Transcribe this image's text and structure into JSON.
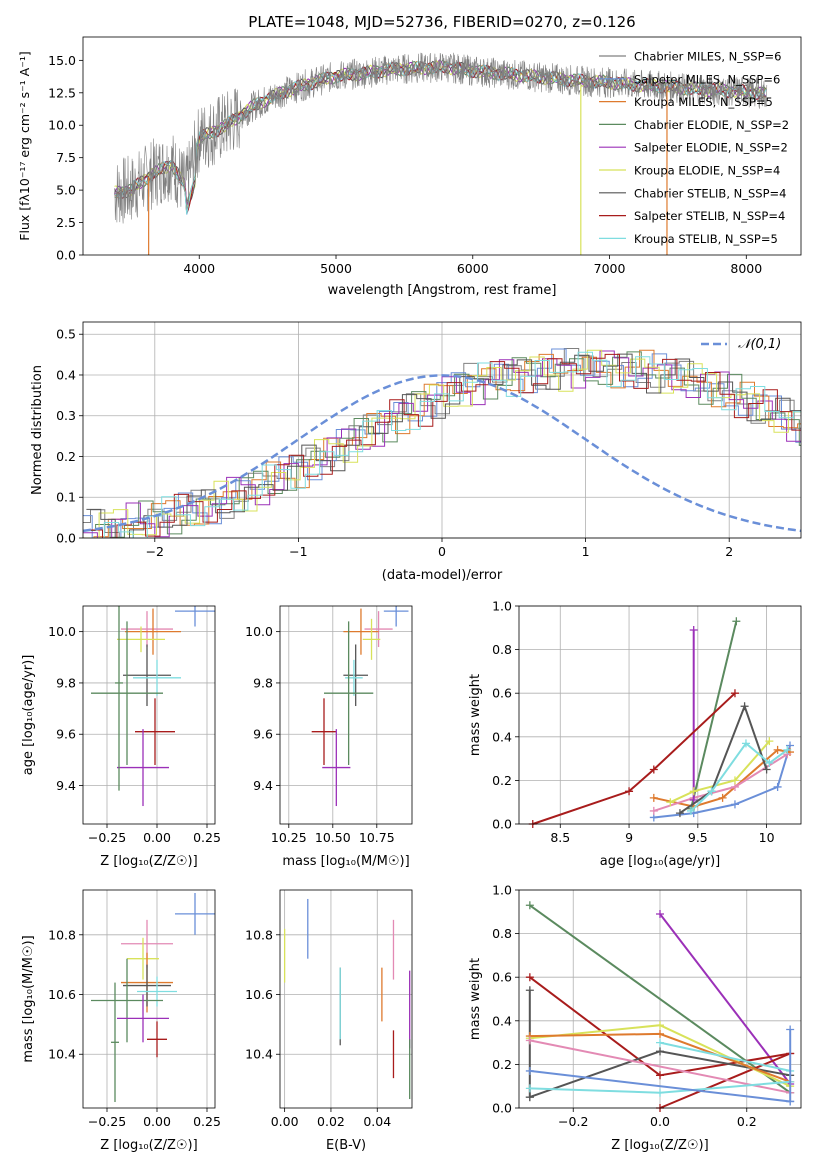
{
  "colors": {
    "blue": "#6a8fd8",
    "orange": "#de7a2e",
    "green": "#5b8a5f",
    "pink": "#e38ab4",
    "purple": "#9b30b8",
    "yellow": "#d8e25a",
    "dark": "#555555",
    "red": "#a81c1c",
    "cyan": "#7fdde0",
    "grey": "#808080"
  },
  "chart_data": [
    {
      "id": "spectrum",
      "type": "line",
      "title": "PLATE=1048, MJD=52736, FIBERID=0270, z=0.126",
      "xlabel": "wavelength [Angstrom, rest frame]",
      "ylabel": "Flux [fλ10⁻¹⁷ erg cm⁻² s⁻¹ A⁻¹]",
      "xlim": [
        3150,
        8400
      ],
      "ylim": [
        0,
        16.8
      ],
      "xticks": [
        4000,
        5000,
        6000,
        7000,
        8000
      ],
      "yticks": [
        0.0,
        2.5,
        5.0,
        7.5,
        10.0,
        12.5,
        15.0
      ],
      "legend_position": "top-right",
      "legend": [
        {
          "name": "Chabrier MILES, N_SSP=6",
          "color_key": "grey"
        },
        {
          "name": "Salpeter MILES, N_SSP=6",
          "color_key": "blue"
        },
        {
          "name": "Kroupa MILES, N_SSP=5",
          "color_key": "orange"
        },
        {
          "name": "Chabrier ELODIE, N_SSP=2",
          "color_key": "green"
        },
        {
          "name": "Salpeter ELODIE, N_SSP=2",
          "color_key": "purple"
        },
        {
          "name": "Kroupa ELODIE, N_SSP=4",
          "color_key": "yellow"
        },
        {
          "name": "Chabrier STELIB, N_SSP=4",
          "color_key": "dark"
        },
        {
          "name": "Salpeter STELIB, N_SSP=4",
          "color_key": "red"
        },
        {
          "name": "Kroupa STELIB, N_SSP=5",
          "color_key": "cyan"
        }
      ],
      "continuum": {
        "x": [
          3380,
          3500,
          3650,
          3800,
          3900,
          4000,
          4200,
          4400,
          4600,
          4800,
          5000,
          5200,
          5400,
          5600,
          5800,
          6000,
          6200,
          6400,
          6600,
          6800,
          7000,
          7200,
          7400,
          7600,
          7800,
          8000,
          8150
        ],
        "y": [
          4.8,
          5.0,
          6.2,
          7.0,
          5.2,
          9.0,
          10.0,
          11.5,
          12.5,
          13.2,
          13.8,
          14.0,
          14.3,
          14.4,
          14.5,
          14.2,
          14.0,
          13.8,
          13.6,
          13.4,
          13.3,
          13.1,
          13.0,
          12.8,
          12.7,
          12.6,
          12.4
        ]
      },
      "vertical_artifacts": [
        {
          "x": 6790,
          "y": [
            0,
            13.0
          ],
          "color_key": "yellow"
        },
        {
          "x": 7420,
          "y": [
            0,
            13.0
          ],
          "color_key": "orange"
        },
        {
          "x": 3630,
          "y": [
            0,
            6.0
          ],
          "color_key": "orange"
        }
      ]
    },
    {
      "id": "residuals",
      "type": "line",
      "title": "",
      "xlabel": "(data-model)/error",
      "ylabel": "Normed distribution",
      "xlim": [
        -2.5,
        2.5
      ],
      "ylim": [
        0,
        0.53
      ],
      "xticks": [
        -2,
        -1,
        0,
        1,
        2
      ],
      "yticks": [
        0.0,
        0.1,
        0.2,
        0.3,
        0.4,
        0.5
      ],
      "grid": true,
      "legend_position": "top-right",
      "reference_curve": {
        "name": "𝒩(0,1)",
        "style": "dashed",
        "color_key": "blue"
      },
      "histogram_bins": {
        "start": -2.5,
        "width": 0.1
      },
      "histogram_mean": [
        0.018,
        0.022,
        0.027,
        0.033,
        0.04,
        0.047,
        0.055,
        0.065,
        0.075,
        0.087,
        0.1,
        0.113,
        0.128,
        0.143,
        0.16,
        0.177,
        0.195,
        0.214,
        0.233,
        0.252,
        0.27,
        0.29,
        0.308,
        0.325,
        0.342,
        0.357,
        0.37,
        0.382,
        0.392,
        0.4,
        0.405,
        0.408,
        0.412,
        0.415,
        0.418,
        0.42,
        0.42,
        0.418,
        0.415,
        0.41,
        0.404,
        0.396,
        0.387,
        0.376,
        0.363,
        0.349,
        0.334,
        0.318,
        0.301,
        0.283,
        0.265,
        0.247,
        0.228,
        0.21,
        0.192,
        0.175,
        0.158,
        0.142,
        0.127,
        0.113,
        0.1,
        0.088,
        0.077,
        0.067,
        0.058,
        0.05,
        0.043,
        0.036,
        0.03,
        0.025
      ],
      "series_color_keys": [
        "grey",
        "blue",
        "orange",
        "green",
        "purple",
        "yellow",
        "dark",
        "red",
        "cyan"
      ]
    },
    {
      "id": "age-vs-Z",
      "type": "scatter",
      "xlabel": "Z [log₁₀(Z/Z☉)]",
      "ylabel": "age  [log₁₀(age/yr)]",
      "xlim": [
        -0.37,
        0.29
      ],
      "ylim": [
        9.25,
        10.1
      ],
      "xticks": [
        -0.25,
        0.0,
        0.25
      ],
      "xtick_labels": [
        "−0.25",
        "0.00",
        "0.25"
      ],
      "yticks": [
        9.4,
        9.6,
        9.8,
        10.0
      ],
      "grid": true,
      "errorbars": [
        {
          "color_key": "blue",
          "x": 0.19,
          "xerr": 0.1,
          "y": 10.08,
          "yerr": 0.06
        },
        {
          "color_key": "pink",
          "x": -0.05,
          "xerr": 0.13,
          "y": 10.01,
          "yerr": 0.07
        },
        {
          "color_key": "orange",
          "x": -0.02,
          "xerr": 0.14,
          "y": 10.0,
          "yerr": 0.09
        },
        {
          "color_key": "yellow",
          "x": -0.08,
          "xerr": 0.12,
          "y": 9.97,
          "yerr": 0.05
        },
        {
          "color_key": "dark",
          "x": -0.05,
          "xerr": 0.12,
          "y": 9.83,
          "yerr": 0.12
        },
        {
          "color_key": "cyan",
          "x": 0.0,
          "xerr": 0.12,
          "y": 9.82,
          "yerr": 0.07
        },
        {
          "color_key": "green",
          "x": -0.15,
          "xerr": 0.18,
          "y": 9.76,
          "yerr": 0.28
        },
        {
          "color_key": "red",
          "x": -0.01,
          "xerr": 0.1,
          "y": 9.61,
          "yerr": 0.13
        },
        {
          "color_key": "purple",
          "x": -0.07,
          "xerr": 0.13,
          "y": 9.47,
          "yerr": 0.15
        },
        {
          "color_key": "green",
          "x": -0.19,
          "xerr": 0.02,
          "y": 9.8,
          "yerr": 0.42
        }
      ]
    },
    {
      "id": "age-vs-mass",
      "type": "scatter",
      "xlabel": "mass [log₁₀(M/M☉)]",
      "ylabel": "",
      "xlim": [
        10.2,
        10.95
      ],
      "ylim": [
        9.25,
        10.1
      ],
      "xticks": [
        10.25,
        10.5,
        10.75
      ],
      "xtick_labels": [
        "10.25",
        "10.50",
        "10.75"
      ],
      "yticks": [
        9.4,
        9.6,
        9.8,
        10.0
      ],
      "grid": true,
      "errorbars": [
        {
          "color_key": "blue",
          "x": 10.86,
          "xerr": 0.07,
          "y": 10.08,
          "yerr": 0.06
        },
        {
          "color_key": "pink",
          "x": 10.76,
          "xerr": 0.08,
          "y": 10.01,
          "yerr": 0.07
        },
        {
          "color_key": "orange",
          "x": 10.66,
          "xerr": 0.1,
          "y": 10.0,
          "yerr": 0.09
        },
        {
          "color_key": "yellow",
          "x": 10.72,
          "xerr": 0.05,
          "y": 9.97,
          "yerr": 0.08
        },
        {
          "color_key": "dark",
          "x": 10.63,
          "xerr": 0.07,
          "y": 9.83,
          "yerr": 0.12
        },
        {
          "color_key": "cyan",
          "x": 10.62,
          "xerr": 0.05,
          "y": 9.82,
          "yerr": 0.07
        },
        {
          "color_key": "green",
          "x": 10.59,
          "xerr": 0.14,
          "y": 9.76,
          "yerr": 0.28
        },
        {
          "color_key": "red",
          "x": 10.45,
          "xerr": 0.07,
          "y": 9.61,
          "yerr": 0.13
        },
        {
          "color_key": "purple",
          "x": 10.52,
          "xerr": 0.08,
          "y": 9.47,
          "yerr": 0.15
        }
      ]
    },
    {
      "id": "weight-vs-age",
      "type": "line",
      "xlabel": "age  [log₁₀(age/yr)]",
      "ylabel": "mass weight",
      "xlim": [
        8.2,
        10.25
      ],
      "ylim": [
        0,
        1.0
      ],
      "xticks": [
        8.5,
        9.0,
        9.5,
        10.0
      ],
      "yticks": [
        0.0,
        0.2,
        0.4,
        0.6,
        0.8,
        1.0
      ],
      "grid": true,
      "series": [
        {
          "color_key": "blue",
          "x": [
            9.18,
            9.47,
            9.77,
            10.08,
            10.17
          ],
          "y": [
            0.03,
            0.05,
            0.09,
            0.17,
            0.36
          ]
        },
        {
          "color_key": "orange",
          "x": [
            9.18,
            9.47,
            9.68,
            10.08,
            10.17
          ],
          "y": [
            0.12,
            0.08,
            0.12,
            0.34,
            0.33
          ]
        },
        {
          "color_key": "green",
          "x": [
            9.45,
            9.78
          ],
          "y": [
            0.07,
            0.93
          ]
        },
        {
          "color_key": "pink",
          "x": [
            9.18,
            9.47,
            9.77,
            10.15
          ],
          "y": [
            0.06,
            0.12,
            0.17,
            0.32
          ]
        },
        {
          "color_key": "purple",
          "x": [
            9.47,
            9.47
          ],
          "y": [
            0.11,
            0.89
          ]
        },
        {
          "color_key": "yellow",
          "x": [
            9.3,
            9.47,
            9.77,
            10.02
          ],
          "y": [
            0.1,
            0.15,
            0.2,
            0.38
          ]
        },
        {
          "color_key": "dark",
          "x": [
            9.37,
            9.6,
            9.84,
            10.0
          ],
          "y": [
            0.05,
            0.15,
            0.54,
            0.25
          ]
        },
        {
          "color_key": "red",
          "x": [
            8.3,
            9.0,
            9.18,
            9.77
          ],
          "y": [
            0.0,
            0.15,
            0.25,
            0.6
          ]
        },
        {
          "color_key": "cyan",
          "x": [
            9.45,
            9.6,
            9.85,
            10.02,
            10.15
          ],
          "y": [
            0.06,
            0.15,
            0.37,
            0.28,
            0.34
          ]
        }
      ]
    },
    {
      "id": "mass-vs-Z",
      "type": "scatter",
      "xlabel": "Z [log₁₀(Z/Z☉)]",
      "ylabel": "mass [log₁₀(M/M☉)]",
      "xlim": [
        -0.37,
        0.29
      ],
      "ylim": [
        10.22,
        10.95
      ],
      "xticks": [
        -0.25,
        0.0,
        0.25
      ],
      "xtick_labels": [
        "−0.25",
        "0.00",
        "0.25"
      ],
      "yticks": [
        10.4,
        10.6,
        10.8
      ],
      "grid": true,
      "errorbars": [
        {
          "color_key": "blue",
          "x": 0.19,
          "xerr": 0.1,
          "y": 10.87,
          "yerr": 0.07
        },
        {
          "color_key": "pink",
          "x": -0.05,
          "xerr": 0.13,
          "y": 10.77,
          "yerr": 0.08
        },
        {
          "color_key": "yellow",
          "x": -0.07,
          "xerr": 0.08,
          "y": 10.72,
          "yerr": 0.07
        },
        {
          "color_key": "orange",
          "x": -0.05,
          "xerr": 0.13,
          "y": 10.64,
          "yerr": 0.1
        },
        {
          "color_key": "dark",
          "x": -0.05,
          "xerr": 0.12,
          "y": 10.63,
          "yerr": 0.07
        },
        {
          "color_key": "cyan",
          "x": 0.0,
          "xerr": 0.1,
          "y": 10.61,
          "yerr": 0.05
        },
        {
          "color_key": "green",
          "x": -0.15,
          "xerr": 0.18,
          "y": 10.58,
          "yerr": 0.14
        },
        {
          "color_key": "purple",
          "x": -0.07,
          "xerr": 0.13,
          "y": 10.52,
          "yerr": 0.08
        },
        {
          "color_key": "red",
          "x": 0.0,
          "xerr": 0.05,
          "y": 10.45,
          "yerr": 0.06
        },
        {
          "color_key": "green",
          "x": -0.21,
          "xerr": 0.02,
          "y": 10.44,
          "yerr": 0.2
        }
      ]
    },
    {
      "id": "mass-vs-EBV",
      "type": "scatter",
      "xlabel": "E(B-V)",
      "ylabel": "",
      "xlim": [
        -0.002,
        0.055
      ],
      "ylim": [
        10.22,
        10.95
      ],
      "xticks": [
        0.0,
        0.02,
        0.04
      ],
      "xtick_labels": [
        "0.00",
        "0.02",
        "0.04"
      ],
      "yticks": [
        10.4,
        10.6,
        10.8
      ],
      "grid": true,
      "errorbars": [
        {
          "color_key": "yellow",
          "x": 0.0,
          "y": 10.73,
          "yerr": 0.09
        },
        {
          "color_key": "blue",
          "x": 0.01,
          "y": 10.82,
          "yerr": 0.1
        },
        {
          "color_key": "dark",
          "x": 0.024,
          "y": 10.56,
          "yerr": 0.13
        },
        {
          "color_key": "cyan",
          "x": 0.024,
          "y": 10.57,
          "yerr": 0.12
        },
        {
          "color_key": "orange",
          "x": 0.042,
          "y": 10.6,
          "yerr": 0.09
        },
        {
          "color_key": "pink",
          "x": 0.047,
          "y": 10.75,
          "yerr": 0.1
        },
        {
          "color_key": "red",
          "x": 0.047,
          "y": 10.4,
          "yerr": 0.08
        },
        {
          "color_key": "purple",
          "x": 0.054,
          "y": 10.55,
          "yerr": 0.13
        },
        {
          "color_key": "green",
          "x": 0.054,
          "y": 10.35,
          "yerr": 0.1
        }
      ]
    },
    {
      "id": "weight-vs-Z",
      "type": "line",
      "xlabel": "Z [log₁₀(Z/Z☉)]",
      "ylabel": "mass weight",
      "xlim": [
        -0.325,
        0.325
      ],
      "ylim": [
        0,
        1.0
      ],
      "xticks": [
        -0.2,
        0.0,
        0.2
      ],
      "xtick_labels": [
        "−0.2",
        "0.0",
        "0.2"
      ],
      "yticks": [
        0.0,
        0.2,
        0.4,
        0.6,
        0.8,
        1.0
      ],
      "grid": true,
      "series": [
        {
          "color_key": "green",
          "x": [
            -0.3,
            0.3
          ],
          "y": [
            0.93,
            0.07
          ]
        },
        {
          "color_key": "purple",
          "x": [
            0.0,
            0.3
          ],
          "y": [
            0.89,
            0.11
          ]
        },
        {
          "color_key": "red",
          "x": [
            -0.3,
            0.0,
            0.3
          ],
          "y": [
            0.6,
            0.15,
            0.25
          ]
        },
        {
          "color_key": "red",
          "x": [
            0.0,
            0.3
          ],
          "y": [
            0.0,
            0.25
          ]
        },
        {
          "color_key": "dark",
          "x": [
            -0.3,
            0.0,
            0.3
          ],
          "y": [
            0.05,
            0.26,
            0.15
          ]
        },
        {
          "color_key": "dark",
          "x": [
            -0.3,
            -0.3
          ],
          "y": [
            0.05,
            0.54
          ]
        },
        {
          "color_key": "yellow",
          "x": [
            -0.3,
            0.0,
            0.3
          ],
          "y": [
            0.32,
            0.38,
            0.1
          ]
        },
        {
          "color_key": "orange",
          "x": [
            -0.3,
            0.0,
            0.3
          ],
          "y": [
            0.33,
            0.34,
            0.12
          ]
        },
        {
          "color_key": "pink",
          "x": [
            -0.3,
            0.3
          ],
          "y": [
            0.31,
            0.07
          ]
        },
        {
          "color_key": "cyan",
          "x": [
            -0.3,
            0.0,
            0.3
          ],
          "y": [
            0.09,
            0.07,
            0.12
          ]
        },
        {
          "color_key": "cyan",
          "x": [
            0.0,
            0.3
          ],
          "y": [
            0.3,
            0.17
          ]
        },
        {
          "color_key": "blue",
          "x": [
            -0.3,
            0.3
          ],
          "y": [
            0.17,
            0.03
          ]
        },
        {
          "color_key": "blue",
          "x": [
            0.3,
            0.3
          ],
          "y": [
            0.03,
            0.36
          ]
        }
      ]
    }
  ]
}
